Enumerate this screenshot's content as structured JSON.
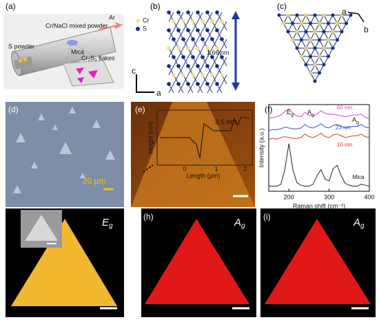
{
  "panel_labels": [
    "(a)",
    "(b)",
    "(c)",
    "(d)",
    "(e)",
    "(f)",
    "(g)",
    "(h)",
    "(i)"
  ],
  "a": {
    "s_powder": "S powder",
    "mixed_powder": "Cr/NaCl mixed powder",
    "mica": "Mica",
    "gas": "Ar",
    "flakes": "Cr₂S₃ flakes"
  },
  "b": {
    "legend": [
      "Cr",
      "S"
    ],
    "spacing": "1.66 nm",
    "axes": [
      "c",
      "a"
    ]
  },
  "c": {
    "axes": [
      "a",
      "b"
    ]
  },
  "d": {
    "scale": "20 μm"
  },
  "e": {
    "step": "3.5 nm",
    "y_label": "Height (nm)",
    "x_label": "Length (μm)",
    "x_ticks": [
      "0",
      "1",
      "2"
    ]
  },
  "chart_data": {
    "type": "line",
    "x_label": "Raman shift (cm⁻¹)",
    "y_label": "Intensity (a.u.)",
    "x": [
      150,
      160,
      170,
      180,
      190,
      200,
      210,
      220,
      230,
      240,
      250,
      260,
      270,
      280,
      290,
      300,
      310,
      320,
      330,
      340,
      350,
      360,
      370,
      380,
      390,
      400
    ],
    "xlim": [
      150,
      400
    ],
    "xticks": [
      200,
      300,
      400
    ],
    "ylim": [
      0,
      100
    ],
    "series": [
      {
        "name": "Mica",
        "color": "#222222",
        "values": [
          6,
          6,
          6,
          8,
          25,
          55,
          25,
          10,
          7,
          6,
          6,
          8,
          18,
          25,
          14,
          12,
          26,
          30,
          18,
          9,
          7,
          6,
          6,
          8,
          7,
          6
        ]
      },
      {
        "name": "10 nm",
        "color": "#e03030",
        "values": [
          60,
          61,
          60,
          62,
          63,
          62,
          61,
          61,
          62,
          66,
          63,
          62,
          64,
          67,
          63,
          62,
          65,
          66,
          64,
          62,
          63,
          64,
          64,
          66,
          63,
          62
        ]
      },
      {
        "name": "23 nm",
        "color": "#3a4fd0",
        "values": [
          70,
          71,
          71,
          72,
          74,
          73,
          72,
          72,
          73,
          77,
          74,
          73,
          75,
          78,
          74,
          73,
          76,
          77,
          75,
          73,
          74,
          75,
          75,
          77,
          74,
          73
        ]
      },
      {
        "name": "60 nm",
        "color": "#e040c8",
        "values": [
          84,
          85,
          86,
          88,
          92,
          95,
          90,
          87,
          86,
          91,
          88,
          87,
          89,
          93,
          90,
          89,
          89,
          88,
          87,
          86,
          87,
          88,
          88,
          89,
          85,
          84
        ]
      }
    ],
    "annotations": [
      {
        "symbol": "E",
        "sub": "g"
      },
      {
        "symbol": "A",
        "sub": "g"
      },
      {
        "symbol": "A",
        "sub": "g"
      }
    ]
  },
  "g": {
    "symbol": "E",
    "sub": "g"
  },
  "h": {
    "symbol": "A",
    "sub": "g"
  },
  "i": {
    "symbol": "A",
    "sub": "g"
  }
}
